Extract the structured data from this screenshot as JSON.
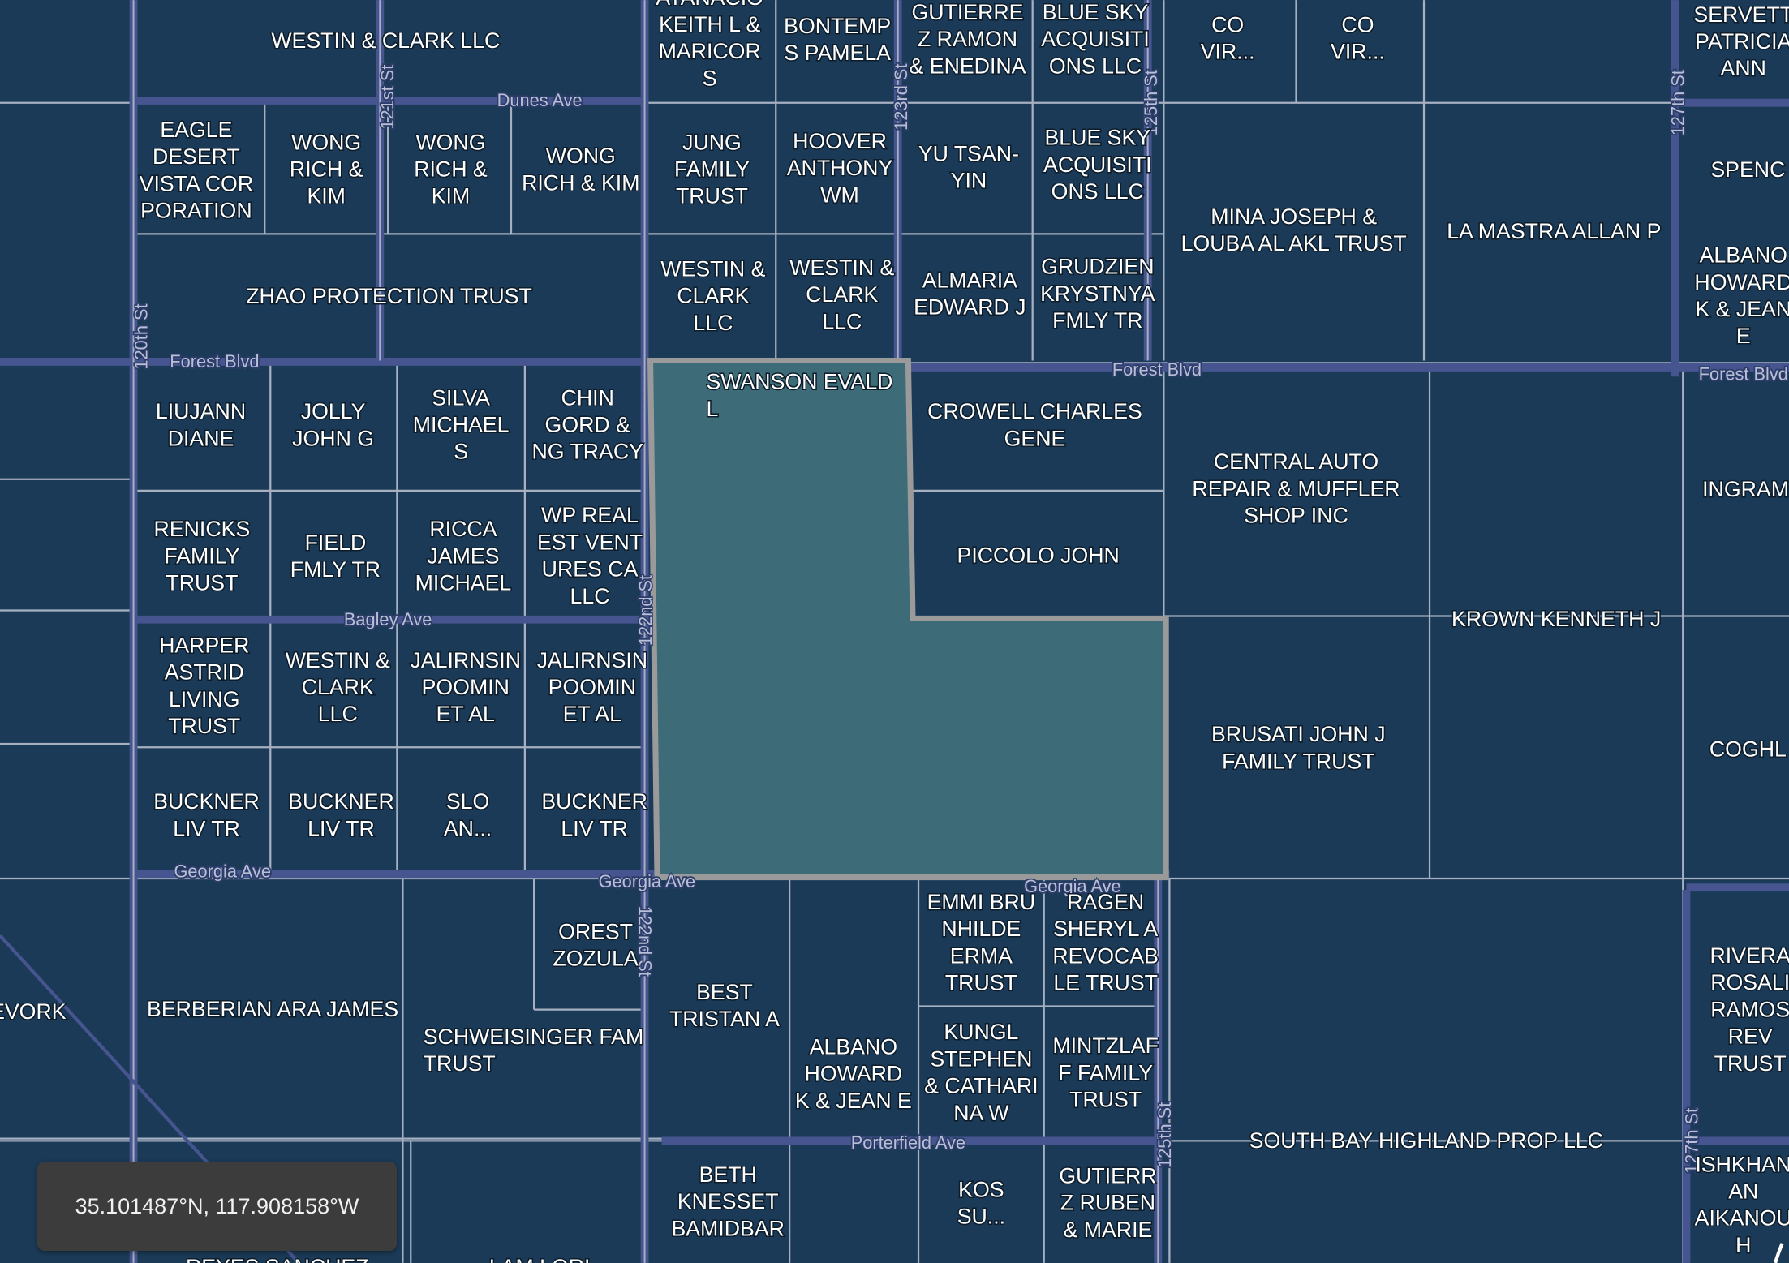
{
  "colors": {
    "background": "#1b3a57",
    "road": "#46558f",
    "parcel_line": "#a7b0c0",
    "selected_fill": "#3d6b78",
    "selected_stroke": "#9a9a9a"
  },
  "coordinates": "35.101487°N, 117.908158°W",
  "selected_parcel": "SWANSON EVALD L",
  "parcels": [
    {
      "lines": [
        "WESTIN & CLARK LLC"
      ]
    },
    {
      "lines": [
        "ATANACIO",
        "KEITH L &",
        "MARICOR",
        "S"
      ]
    },
    {
      "lines": [
        "BONTEMP",
        "S PAMELA"
      ]
    },
    {
      "lines": [
        "GUTIERRE",
        "Z RAMON",
        "& ENEDINA"
      ]
    },
    {
      "lines": [
        "BLUE SKY",
        "ACQUISITI",
        "ONS LLC"
      ]
    },
    {
      "lines": [
        "CO",
        "VIR..."
      ]
    },
    {
      "lines": [
        "CO",
        "VIR..."
      ]
    },
    {
      "lines": [
        "SERVETT",
        "PATRICIA",
        "ANN"
      ]
    },
    {
      "lines": [
        "EAGLE",
        "DESERT",
        "VISTA COR",
        "PORATION"
      ]
    },
    {
      "lines": [
        "WONG",
        "RICH &",
        "KIM"
      ]
    },
    {
      "lines": [
        "WONG",
        "RICH &",
        "KIM"
      ]
    },
    {
      "lines": [
        "WONG",
        "RICH & KIM"
      ]
    },
    {
      "lines": [
        "JUNG",
        "FAMILY",
        "TRUST"
      ]
    },
    {
      "lines": [
        "HOOVER",
        "ANTHONY",
        "WM"
      ]
    },
    {
      "lines": [
        "YU TSAN-",
        "YIN"
      ]
    },
    {
      "lines": [
        "BLUE SKY",
        "ACQUISITI",
        "ONS LLC"
      ]
    },
    {
      "lines": [
        "MINA JOSEPH &",
        "LOUBA AL AKL TRUST"
      ]
    },
    {
      "lines": [
        "LA MASTRA ALLAN P"
      ]
    },
    {
      "lines": [
        "SPENC"
      ]
    },
    {
      "lines": [
        "ALBANO",
        "HOWARD",
        "K & JEAN",
        "E"
      ]
    },
    {
      "lines": [
        "ZHAO PROTECTION TRUST"
      ]
    },
    {
      "lines": [
        "WESTIN &",
        "CLARK",
        "LLC"
      ]
    },
    {
      "lines": [
        "WESTIN &",
        "CLARK",
        "LLC"
      ]
    },
    {
      "lines": [
        "ALMARIA",
        "EDWARD J"
      ]
    },
    {
      "lines": [
        "GRUDZIEN",
        "KRYSTNYA",
        "FMLY TR"
      ]
    },
    {
      "lines": [
        "SWANSON EVALD",
        "L"
      ]
    },
    {
      "lines": [
        "CROWELL CHARLES",
        "GENE"
      ]
    },
    {
      "lines": [
        "LIUJANN",
        "DIANE"
      ]
    },
    {
      "lines": [
        "JOLLY",
        "JOHN G"
      ]
    },
    {
      "lines": [
        "SILVA",
        "MICHAEL",
        "S"
      ]
    },
    {
      "lines": [
        "CHIN",
        "GORD &",
        "NG TRACY"
      ]
    },
    {
      "lines": [
        "CENTRAL AUTO",
        "REPAIR & MUFFLER",
        "SHOP INC"
      ]
    },
    {
      "lines": [
        "INGRAM"
      ]
    },
    {
      "lines": [
        "RENICKS",
        "FAMILY",
        "TRUST"
      ]
    },
    {
      "lines": [
        "FIELD",
        "FMLY TR"
      ]
    },
    {
      "lines": [
        "RICCA",
        "JAMES",
        "MICHAEL"
      ]
    },
    {
      "lines": [
        "WP REAL",
        "EST VENT",
        "URES CA",
        "LLC"
      ]
    },
    {
      "lines": [
        "PICCOLO JOHN"
      ]
    },
    {
      "lines": [
        "KROWN KENNETH J"
      ]
    },
    {
      "lines": [
        "HARPER",
        "ASTRID",
        "LIVING",
        "TRUST"
      ]
    },
    {
      "lines": [
        "WESTIN &",
        "CLARK",
        "LLC"
      ]
    },
    {
      "lines": [
        "JALIRNSIN",
        "POOMIN",
        "ET AL"
      ]
    },
    {
      "lines": [
        "JALIRNSIN",
        "POOMIN",
        "ET AL"
      ]
    },
    {
      "lines": [
        "BRUSATI JOHN J",
        "FAMILY TRUST"
      ]
    },
    {
      "lines": [
        "COGHL"
      ]
    },
    {
      "lines": [
        "BUCKNER",
        "LIV TR"
      ]
    },
    {
      "lines": [
        "BUCKNER",
        "LIV TR"
      ]
    },
    {
      "lines": [
        "SLO",
        "AN..."
      ]
    },
    {
      "lines": [
        "BUCKNER",
        "LIV TR"
      ]
    },
    {
      "lines": [
        "OREST",
        "ZOZULA"
      ]
    },
    {
      "lines": [
        "EMMI BRU",
        "NHILDE",
        "ERMA",
        "TRUST"
      ]
    },
    {
      "lines": [
        "RAGEN",
        "SHERYL A",
        "REVOCAB",
        "LE TRUST"
      ]
    },
    {
      "lines": [
        "RIVERA",
        "ROSALI",
        "RAMOS",
        "REV",
        "TRUST"
      ]
    },
    {
      "lines": [
        "EVORK"
      ]
    },
    {
      "lines": [
        "BERBERIAN ARA JAMES"
      ]
    },
    {
      "lines": [
        "BEST",
        "TRISTAN A"
      ]
    },
    {
      "lines": [
        "SCHWEISINGER FAM",
        "TRUST"
      ]
    },
    {
      "lines": [
        "ALBANO",
        "HOWARD",
        "K & JEAN E"
      ]
    },
    {
      "lines": [
        "KUNGL",
        "STEPHEN",
        "& CATHARI",
        "NA W"
      ]
    },
    {
      "lines": [
        "MINTZLAF",
        "F FAMILY",
        "TRUST"
      ]
    },
    {
      "lines": [
        "SOUTH BAY HIGHLAND PROP LLC"
      ]
    },
    {
      "lines": [
        "BETH",
        "KNESSET",
        "BAMIDBAR"
      ]
    },
    {
      "lines": [
        "KOS",
        "SU..."
      ]
    },
    {
      "lines": [
        "GUTIERR",
        "Z RUBEN",
        "& MARIE"
      ]
    },
    {
      "lines": [
        "ISHKHAN",
        "AN",
        "AIKANOU",
        "H"
      ]
    },
    {
      "lines": [
        "REYES SANCHEZ"
      ]
    },
    {
      "lines": [
        "LAM LORI"
      ]
    }
  ],
  "streets": [
    {
      "name": "Dunes Ave"
    },
    {
      "name": "121st St"
    },
    {
      "name": "123rd St"
    },
    {
      "name": "125th St"
    },
    {
      "name": "127th St"
    },
    {
      "name": "120th St"
    },
    {
      "name": "Forest Blvd"
    },
    {
      "name": "Forest Blvd"
    },
    {
      "name": "Forest Blvd"
    },
    {
      "name": "Bagley Ave"
    },
    {
      "name": "122nd St"
    },
    {
      "name": "Georgia Ave"
    },
    {
      "name": "Georgia Ave"
    },
    {
      "name": "Georgia Ave"
    },
    {
      "name": "122nd St"
    },
    {
      "name": "Porterfield Ave"
    },
    {
      "name": "125th St"
    },
    {
      "name": "127th St"
    }
  ]
}
